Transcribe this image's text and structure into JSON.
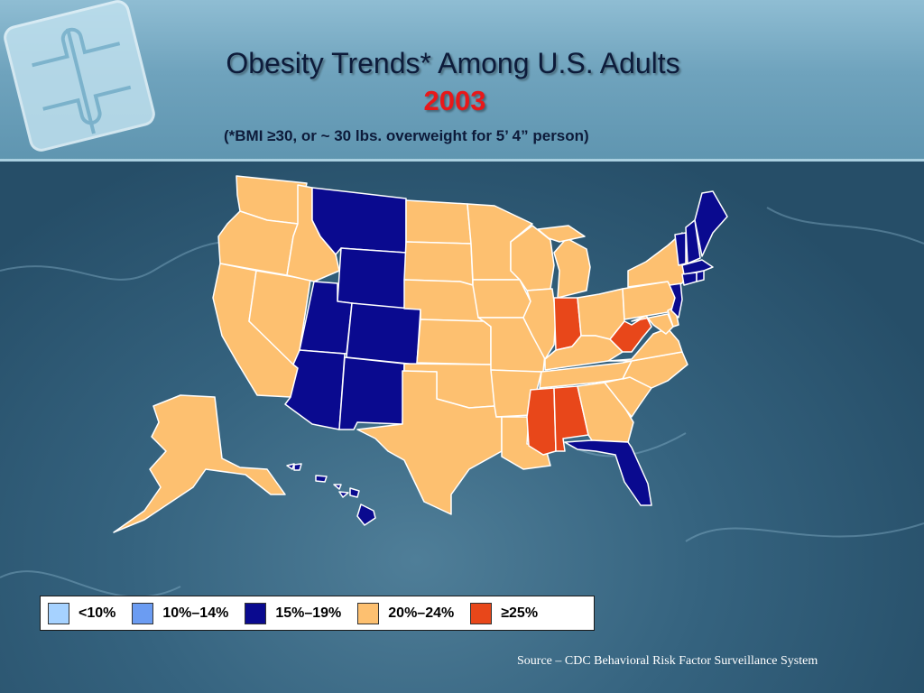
{
  "slide": {
    "title": "Obesity Trends* Among U.S. Adults",
    "year": "2003",
    "note": "(*BMI ≥30, or ~ 30 lbs. overweight for 5’ 4” person)",
    "source": "Source – CDC Behavioral Risk Factor Surveillance System"
  },
  "legend": {
    "items": [
      {
        "label": "<10%",
        "color": "#a6d2ff"
      },
      {
        "label": "10%–14%",
        "color": "#6b9cf2"
      },
      {
        "label": "15%–19%",
        "color": "#0a0a8f"
      },
      {
        "label": "20%–24%",
        "color": "#fdc070"
      },
      {
        "label": "≥25%",
        "color": "#e8471a"
      }
    ]
  },
  "map_data": {
    "year": "2003",
    "categories": {
      "15%–19%": [
        "MT",
        "WY",
        "CO",
        "UT",
        "AZ",
        "NM",
        "FL",
        "HI",
        "VT",
        "NH",
        "ME",
        "MA",
        "RI",
        "CT",
        "NJ"
      ],
      "20%–24%": [
        "WA",
        "OR",
        "CA",
        "NV",
        "ID",
        "ND",
        "SD",
        "NE",
        "KS",
        "OK",
        "TX",
        "MN",
        "IA",
        "MO",
        "AR",
        "LA",
        "WI",
        "IL",
        "MI",
        "OH",
        "KY",
        "TN",
        "GA",
        "SC",
        "NC",
        "VA",
        "MD",
        "DE",
        "PA",
        "NY",
        "AK"
      ],
      "≥25%": [
        "IN",
        "MS",
        "AL",
        "WV"
      ]
    }
  }
}
